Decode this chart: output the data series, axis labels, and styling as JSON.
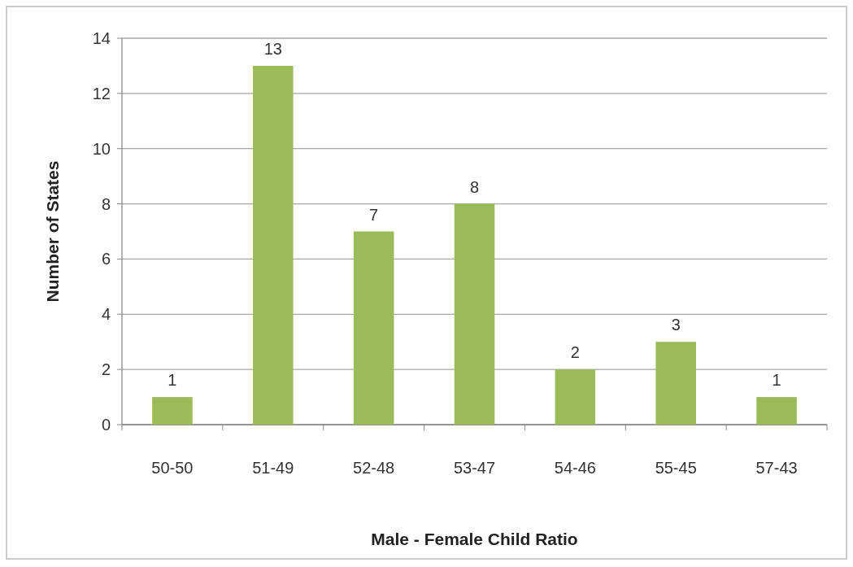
{
  "chart_data": {
    "type": "bar",
    "xlabel": "Male - Female Child Ratio",
    "ylabel": "Number of States",
    "categories": [
      "50-50",
      "51-49",
      "52-48",
      "53-47",
      "54-46",
      "55-45",
      "57-43"
    ],
    "values": [
      1,
      13,
      7,
      8,
      2,
      3,
      1
    ],
    "color": "#9bbb59",
    "ylim": [
      0,
      14
    ],
    "yticks": [
      0,
      2,
      4,
      6,
      8,
      10,
      12,
      14
    ],
    "grid": "y",
    "data_labels": true
  }
}
